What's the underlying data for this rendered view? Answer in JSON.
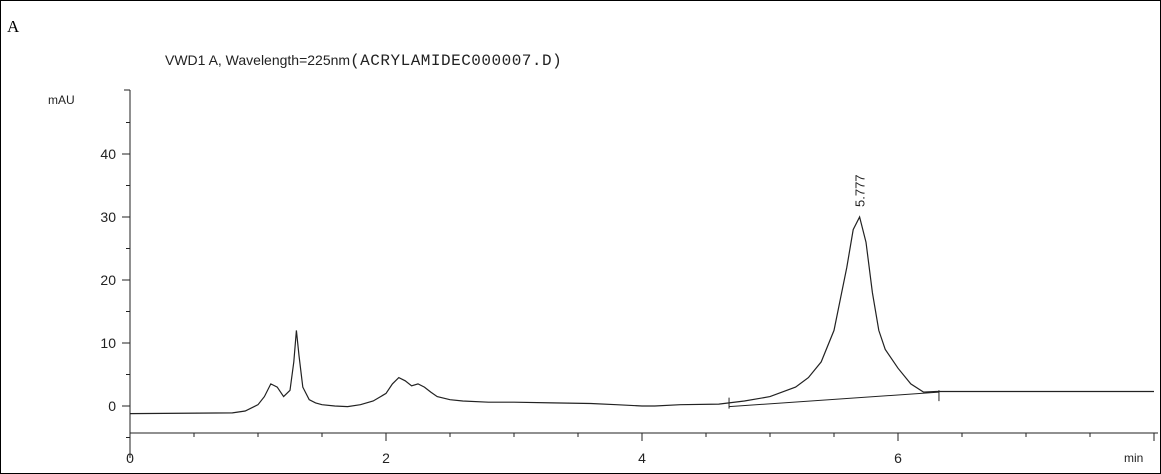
{
  "panel": {
    "label": "A"
  },
  "chart_data": {
    "type": "line",
    "title_prefix": "VWD1 A, Wavelength=225nm",
    "title_file": "(ACRYLAMIDEC000007.D)",
    "ylabel": "mAU",
    "xlabel": "min",
    "xlim": [
      0,
      8
    ],
    "ylim": [
      -5,
      50
    ],
    "x_ticks": [
      0,
      2,
      4,
      6
    ],
    "y_ticks": [
      0,
      10,
      20,
      30,
      40
    ],
    "series": [
      {
        "x": [
          0,
          0.8,
          0.9,
          1.0,
          1.05,
          1.1,
          1.15,
          1.2,
          1.25,
          1.28,
          1.3,
          1.32,
          1.35,
          1.4,
          1.45,
          1.5,
          1.6,
          1.7,
          1.8,
          1.9,
          2.0,
          2.05,
          2.1,
          2.15,
          2.2,
          2.25,
          2.3,
          2.35,
          2.4,
          2.5,
          2.6,
          2.8,
          3.0,
          3.3,
          3.6,
          3.8,
          4.0,
          4.1,
          4.3,
          4.6,
          4.8,
          5.0,
          5.2,
          5.3,
          5.4,
          5.5,
          5.55,
          5.6,
          5.65,
          5.7,
          5.75,
          5.8,
          5.85,
          5.9,
          6.0,
          6.1,
          6.2,
          6.3,
          6.4,
          7.0,
          8.0
        ],
        "y": [
          -1.2,
          -1.1,
          -0.8,
          0.2,
          1.5,
          3.5,
          3.0,
          1.5,
          2.5,
          7.0,
          12.0,
          8.0,
          3.0,
          1.0,
          0.5,
          0.2,
          0.0,
          -0.1,
          0.2,
          0.8,
          2.0,
          3.5,
          4.5,
          4.0,
          3.2,
          3.5,
          3.0,
          2.2,
          1.5,
          1.0,
          0.8,
          0.6,
          0.6,
          0.5,
          0.4,
          0.2,
          0.0,
          0.0,
          0.2,
          0.3,
          0.8,
          1.5,
          3.0,
          4.5,
          7.0,
          12.0,
          17.0,
          22.0,
          28.0,
          30.0,
          26.0,
          18.0,
          12.0,
          9.0,
          6.0,
          3.5,
          2.2,
          2.3,
          2.3,
          2.3,
          2.3
        ]
      }
    ],
    "annotations": [
      {
        "text": "5.777",
        "x": 5.7,
        "y": 30.0
      }
    ],
    "baseline": {
      "x": [
        4.68,
        6.32
      ],
      "y": [
        -0.1,
        2.2
      ]
    }
  }
}
